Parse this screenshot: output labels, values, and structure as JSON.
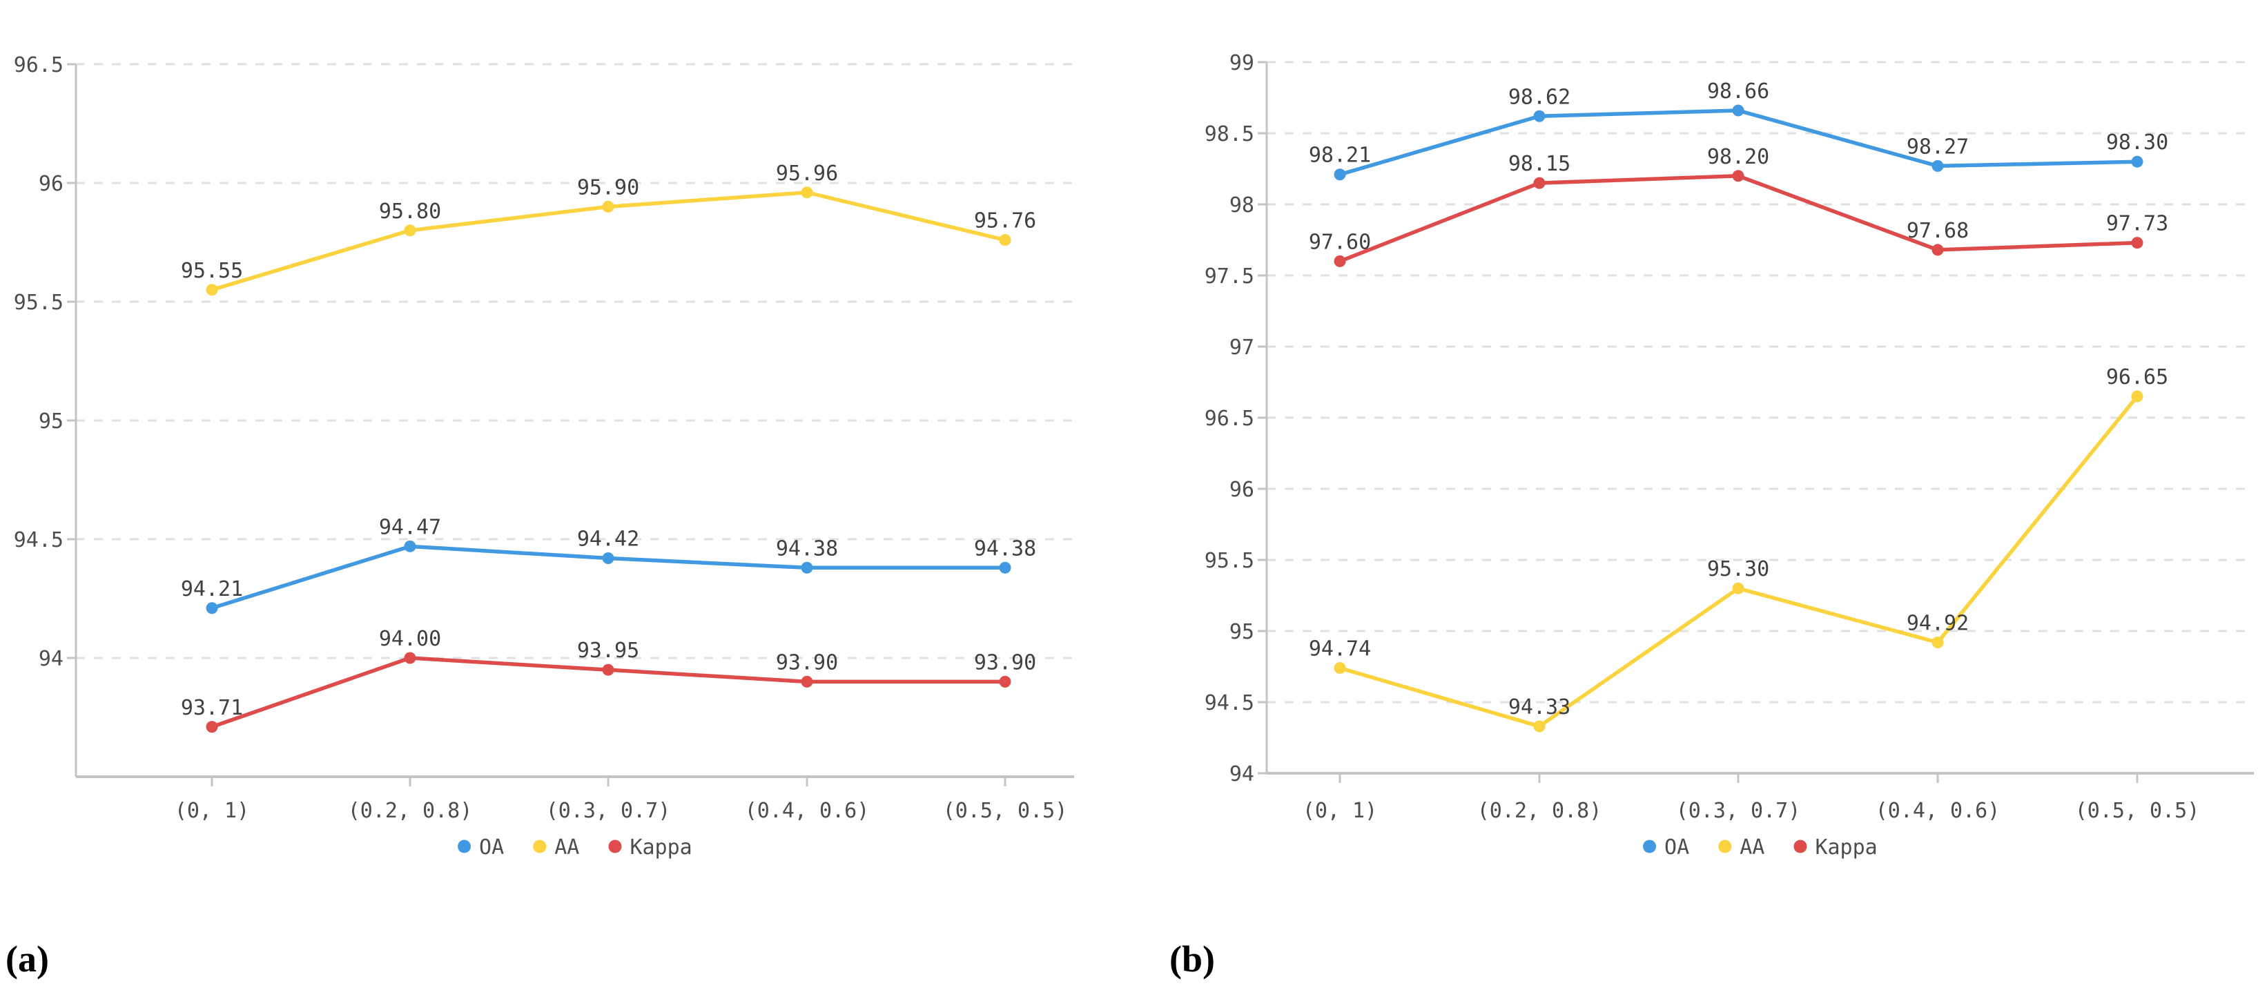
{
  "figure": {
    "background": "#ffffff",
    "grid_color": "#e0e0e0",
    "axis_color": "#c4c4c4",
    "text_color": "#4d4d4d"
  },
  "chart_data": [
    {
      "panel": "a",
      "type": "line",
      "title": "",
      "xlabel": "",
      "ylabel": "",
      "grid": "dashed-horizontal",
      "categories": [
        "(0, 1)",
        "(0.2, 0.8)",
        "(0.3, 0.7)",
        "(0.4, 0.6)",
        "(0.5, 0.5)"
      ],
      "series": [
        {
          "name": "OA",
          "color": "#4199e2",
          "values": [
            94.21,
            94.47,
            94.42,
            94.38,
            94.38
          ],
          "labels": [
            "94.21",
            "94.47",
            "94.42",
            "94.38",
            "94.38"
          ]
        },
        {
          "name": "AA",
          "color": "#fbd33e",
          "values": [
            95.55,
            95.8,
            95.9,
            95.96,
            95.76
          ],
          "labels": [
            "95.55",
            "95.80",
            "95.90",
            "95.96",
            "95.76"
          ]
        },
        {
          "name": "Kappa",
          "color": "#dd4b4b",
          "values": [
            93.71,
            94.0,
            93.95,
            93.9,
            93.9
          ],
          "labels": [
            "93.71",
            "94.00",
            "93.95",
            "93.90",
            "93.90"
          ]
        }
      ],
      "y_axis": {
        "min": 93.5,
        "max": 96.5,
        "tick_step": 0.5,
        "tick_labels": [
          "96.5",
          "96",
          "95.5",
          "95",
          "94.5",
          "94"
        ]
      },
      "legend": {
        "position": "bottom-center",
        "items": [
          "OA",
          "AA",
          "Kappa"
        ]
      },
      "caption": "(a)"
    },
    {
      "panel": "b",
      "type": "line",
      "title": "",
      "xlabel": "",
      "ylabel": "",
      "grid": "dashed-horizontal",
      "categories": [
        "(0, 1)",
        "(0.2, 0.8)",
        "(0.3, 0.7)",
        "(0.4, 0.6)",
        "(0.5, 0.5)"
      ],
      "series": [
        {
          "name": "OA",
          "color": "#4199e2",
          "values": [
            98.21,
            98.62,
            98.66,
            98.27,
            98.3
          ],
          "labels": [
            "98.21",
            "98.62",
            "98.66",
            "98.27",
            "98.30"
          ]
        },
        {
          "name": "AA",
          "color": "#fbd33e",
          "values": [
            94.74,
            94.33,
            95.3,
            94.92,
            96.65
          ],
          "labels": [
            "94.74",
            "94.33",
            "95.30",
            "94.92",
            "96.65"
          ]
        },
        {
          "name": "Kappa",
          "color": "#dd4b4b",
          "values": [
            97.6,
            98.15,
            98.2,
            97.68,
            97.73
          ],
          "labels": [
            "97.60",
            "98.15",
            "98.20",
            "97.68",
            "97.73"
          ]
        }
      ],
      "y_axis": {
        "min": 94,
        "max": 99,
        "tick_step": 0.5,
        "tick_labels": [
          "99",
          "98.5",
          "98",
          "97.5",
          "97",
          "96.5",
          "96",
          "95.5",
          "95",
          "94.5",
          "94"
        ]
      },
      "legend": {
        "position": "bottom-center",
        "items": [
          "OA",
          "AA",
          "Kappa"
        ]
      },
      "caption": "(b)"
    }
  ]
}
